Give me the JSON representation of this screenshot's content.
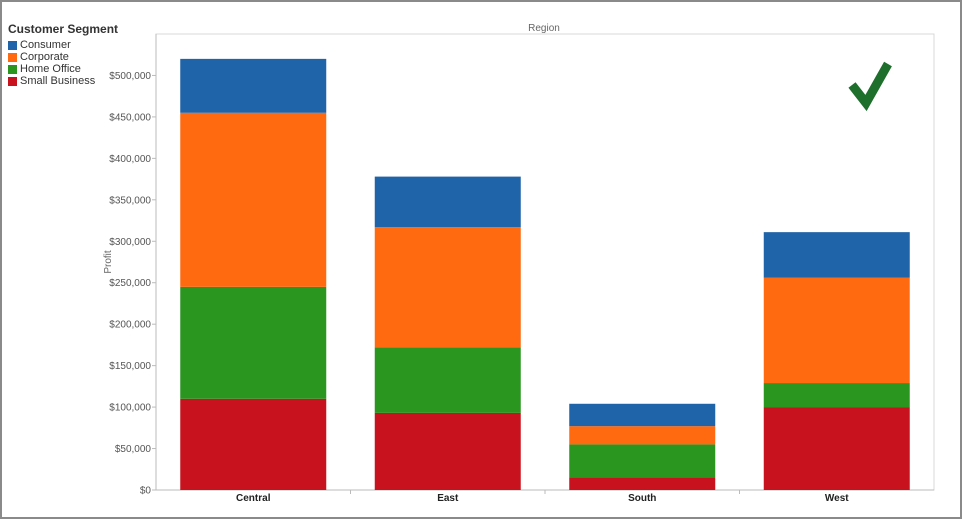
{
  "legend": {
    "title": "Customer Segment",
    "items": [
      {
        "label": "Consumer",
        "color": "#1f63a8"
      },
      {
        "label": "Corporate",
        "color": "#ff6a10"
      },
      {
        "label": "Home Office",
        "color": "#2a9620"
      },
      {
        "label": "Small Business",
        "color": "#c8131f"
      }
    ]
  },
  "badge": {
    "icon": "checkmark-icon",
    "color": "#1e6e2c"
  },
  "chart_data": {
    "type": "bar",
    "stacked": true,
    "title": "",
    "column_header": "Region",
    "xlabel": "",
    "ylabel": "Profit",
    "categories": [
      "Central",
      "East",
      "South",
      "West"
    ],
    "ylim": [
      0,
      550000
    ],
    "yticks": [
      "$0",
      "$50,000",
      "$100,000",
      "$150,000",
      "$200,000",
      "$250,000",
      "$300,000",
      "$350,000",
      "$400,000",
      "$450,000",
      "$500,000"
    ],
    "series": [
      {
        "name": "Small Business",
        "color": "#c8131f",
        "values": [
          110000,
          93000,
          15000,
          100000
        ]
      },
      {
        "name": "Home Office",
        "color": "#2a9620",
        "values": [
          135000,
          79000,
          40000,
          29000
        ]
      },
      {
        "name": "Corporate",
        "color": "#ff6a10",
        "values": [
          210000,
          145000,
          22000,
          127000
        ]
      },
      {
        "name": "Consumer",
        "color": "#1f63a8",
        "values": [
          65000,
          61000,
          27000,
          55000
        ]
      }
    ],
    "grid": false,
    "legend_position": "top-left"
  }
}
